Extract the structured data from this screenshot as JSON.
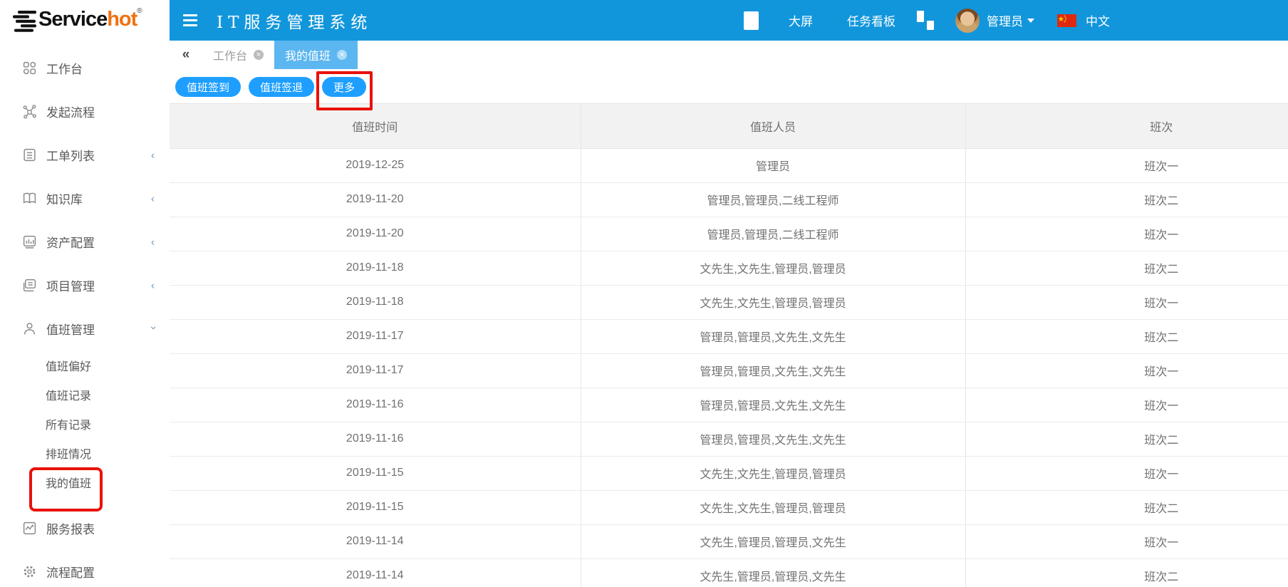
{
  "colors": {
    "topbar_blue": "#1296db",
    "active_tab_blue": "#5cb6f0",
    "button_blue": "#1e9fff",
    "logo_orange": "#ee7211",
    "annotation_red": "#e8120a"
  },
  "brand": {
    "name_black": "Service",
    "name_orange": "hot",
    "registered": "®"
  },
  "topbar": {
    "title": "IT服务管理系统",
    "links": [
      {
        "label": "大屏"
      },
      {
        "label": "任务看板"
      }
    ],
    "user_name": "管理员",
    "language": "中文"
  },
  "tabs": {
    "collapse": "«",
    "items": [
      {
        "label": "工作台",
        "close": "×"
      },
      {
        "label": "我的值班",
        "close": "×",
        "active": true
      }
    ]
  },
  "toolbar": {
    "buttons": [
      {
        "label": "值班签到"
      },
      {
        "label": "值班签退"
      },
      {
        "label": "更多",
        "annotated": true
      }
    ]
  },
  "sidebar": {
    "items": [
      {
        "label": "工作台",
        "icon": "grid-icon",
        "type": "main"
      },
      {
        "label": "发起流程",
        "icon": "flow-icon",
        "type": "main"
      },
      {
        "label": "工单列表",
        "icon": "worklist-icon",
        "type": "main",
        "chevron": "collapsed"
      },
      {
        "label": "知识库",
        "icon": "book-icon",
        "type": "main",
        "chevron": "collapsed"
      },
      {
        "label": "资产配置",
        "icon": "asset-icon",
        "type": "main",
        "chevron": "collapsed"
      },
      {
        "label": "项目管理",
        "icon": "project-icon",
        "type": "main",
        "chevron": "collapsed"
      },
      {
        "label": "值班管理",
        "icon": "user-icon",
        "type": "main",
        "chevron": "expanded"
      },
      {
        "label": "值班偏好",
        "type": "sub"
      },
      {
        "label": "值班记录",
        "type": "sub"
      },
      {
        "label": "所有记录",
        "type": "sub"
      },
      {
        "label": "排班情况",
        "type": "sub"
      },
      {
        "label": "我的值班",
        "type": "sub",
        "annotated": true
      },
      {
        "label": "服务报表",
        "icon": "report-icon",
        "type": "main",
        "gap": true
      },
      {
        "label": "流程配置",
        "icon": "gear-icon",
        "type": "main"
      }
    ]
  },
  "table": {
    "columns": [
      "值班时间",
      "值班人员",
      "班次"
    ],
    "rows": [
      {
        "date": "2019-12-25",
        "people": "管理员",
        "shift": "班次一"
      },
      {
        "date": "2019-11-20",
        "people": "管理员,管理员,二线工程师",
        "shift": "班次二"
      },
      {
        "date": "2019-11-20",
        "people": "管理员,管理员,二线工程师",
        "shift": "班次一"
      },
      {
        "date": "2019-11-18",
        "people": "文先生,文先生,管理员,管理员",
        "shift": "班次二"
      },
      {
        "date": "2019-11-18",
        "people": "文先生,文先生,管理员,管理员",
        "shift": "班次一"
      },
      {
        "date": "2019-11-17",
        "people": "管理员,管理员,文先生,文先生",
        "shift": "班次二"
      },
      {
        "date": "2019-11-17",
        "people": "管理员,管理员,文先生,文先生",
        "shift": "班次一"
      },
      {
        "date": "2019-11-16",
        "people": "管理员,管理员,文先生,文先生",
        "shift": "班次一"
      },
      {
        "date": "2019-11-16",
        "people": "管理员,管理员,文先生,文先生",
        "shift": "班次二"
      },
      {
        "date": "2019-11-15",
        "people": "文先生,文先生,管理员,管理员",
        "shift": "班次一"
      },
      {
        "date": "2019-11-15",
        "people": "文先生,文先生,管理员,管理员",
        "shift": "班次二"
      },
      {
        "date": "2019-11-14",
        "people": "文先生,管理员,管理员,文先生",
        "shift": "班次一"
      },
      {
        "date": "2019-11-14",
        "people": "文先生,管理员,管理员,文先生",
        "shift": "班次二"
      }
    ]
  }
}
